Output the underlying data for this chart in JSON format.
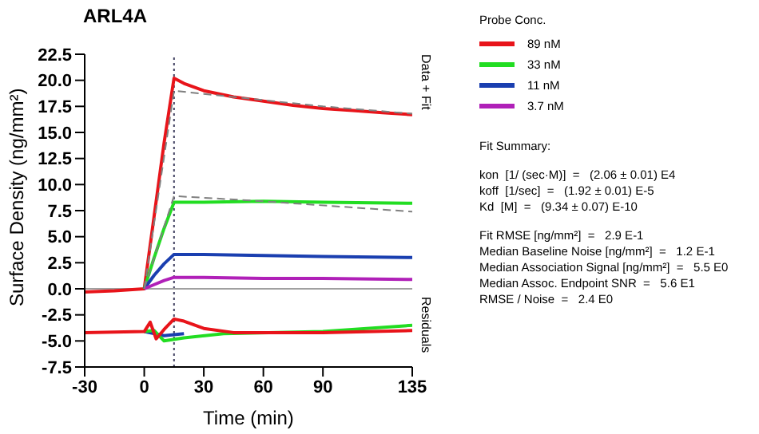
{
  "chart_data": {
    "type": "line",
    "title": "ARL4A",
    "xlabel": "Time (min)",
    "ylabel": "Surface Density (ng/mm²)",
    "legend_title": "Probe Conc.",
    "legend": "right",
    "marker": "none",
    "xlim": [
      -30,
      135
    ],
    "xticks": [
      -30,
      0,
      30,
      60,
      90,
      135
    ],
    "ylim": [
      -7.5,
      22.5
    ],
    "yticks": [
      {
        "value": 22.5,
        "label": "22.5"
      },
      {
        "value": 20,
        "label": "20.0"
      },
      {
        "value": 17.5,
        "label": "17.5"
      },
      {
        "value": 15,
        "label": "15.0"
      },
      {
        "value": 12.5,
        "label": "12.5"
      },
      {
        "value": 10,
        "label": "10.0"
      },
      {
        "value": 7.5,
        "label": "7.5"
      },
      {
        "value": 5,
        "label": "5.0"
      },
      {
        "value": 2.5,
        "label": "2.5"
      },
      {
        "value": 0,
        "label": "0.0"
      },
      {
        "value": -2.5,
        "label": "-2.5"
      },
      {
        "value": -5,
        "label": "-5.0"
      },
      {
        "value": -7.5,
        "label": "-7.5"
      }
    ],
    "ref_lines": [
      {
        "axis": "x",
        "value": 15,
        "color": "#404060",
        "line_style": "dotted"
      },
      {
        "axis": "y",
        "value": 0,
        "color": "#a0a0a0",
        "line_style": "solid"
      }
    ],
    "series": [
      {
        "name": "89 nM",
        "color": "#e8141a",
        "x": [
          -30,
          -15,
          0,
          5,
          10,
          15,
          20,
          30,
          45,
          60,
          75,
          90,
          105,
          120,
          135
        ],
        "values": [
          -0.3,
          -0.2,
          0,
          7,
          14,
          20.2,
          19.7,
          19.0,
          18.4,
          18.0,
          17.6,
          17.3,
          17.1,
          16.9,
          16.7
        ]
      },
      {
        "name": "33 nM",
        "color": "#22dd22",
        "x": [
          0,
          5,
          10,
          15,
          30,
          60,
          90,
          135
        ],
        "values": [
          0,
          3,
          5.8,
          8.3,
          8.3,
          8.4,
          8.3,
          8.2
        ]
      },
      {
        "name": "11 nM",
        "color": "#1a3fb0",
        "x": [
          0,
          5,
          10,
          15,
          30,
          60,
          90,
          135
        ],
        "values": [
          0,
          1.3,
          2.4,
          3.3,
          3.3,
          3.2,
          3.1,
          3.0
        ]
      },
      {
        "name": "3.7 nM",
        "color": "#b020b8",
        "x": [
          0,
          5,
          10,
          15,
          30,
          60,
          90,
          135
        ],
        "values": [
          0,
          0.4,
          0.8,
          1.1,
          1.1,
          1.0,
          1.0,
          0.9
        ]
      },
      {
        "color": "#808080",
        "line_style": "dashed",
        "x": [
          0,
          15,
          30,
          60,
          90,
          135
        ],
        "values": [
          0,
          19.0,
          18.7,
          18.1,
          17.5,
          16.8
        ]
      },
      {
        "color": "#808080",
        "line_style": "dashed",
        "x": [
          0,
          15,
          60,
          135
        ],
        "values": [
          0,
          8.9,
          8.4,
          7.4
        ]
      },
      {
        "color": "#1a3fb0",
        "x": [
          0,
          10,
          20
        ],
        "values": [
          -4.1,
          -4.5,
          -4.3
        ]
      },
      {
        "color": "#22dd22",
        "x": [
          0,
          5,
          10,
          20,
          40,
          90,
          135
        ],
        "values": [
          -4.1,
          -4.0,
          -5.0,
          -4.7,
          -4.3,
          -4.1,
          -3.5
        ]
      },
      {
        "color": "#e8141a",
        "x": [
          -30,
          0,
          3,
          6,
          10,
          15,
          20,
          30,
          45,
          90,
          135
        ],
        "values": [
          -4.2,
          -4.1,
          -3.2,
          -4.8,
          -3.9,
          -2.9,
          -3.1,
          -3.8,
          -4.2,
          -4.2,
          -4.0
        ]
      }
    ],
    "annotations": [
      "Data + Fit",
      "Residuals",
      "Fit Summary:",
      "kon  [1/ (sec·M)]  =   (2.06 ± 0.01) E4",
      "koff  [1/sec]  =   (1.92 ± 0.01) E-5",
      "Kd  [M]  =   (9.34 ± 0.07) E-10",
      "Fit RMSE [ng/mm²]  =   2.9 E-1",
      "Median Baseline Noise [ng/mm²]  =   1.2 E-1",
      "Median Association Signal [ng/mm²]  =   5.5 E0",
      "Median Assoc. Endpoint SNR  =   5.6 E1",
      "RMSE / Noise  =   2.4 E0"
    ]
  }
}
